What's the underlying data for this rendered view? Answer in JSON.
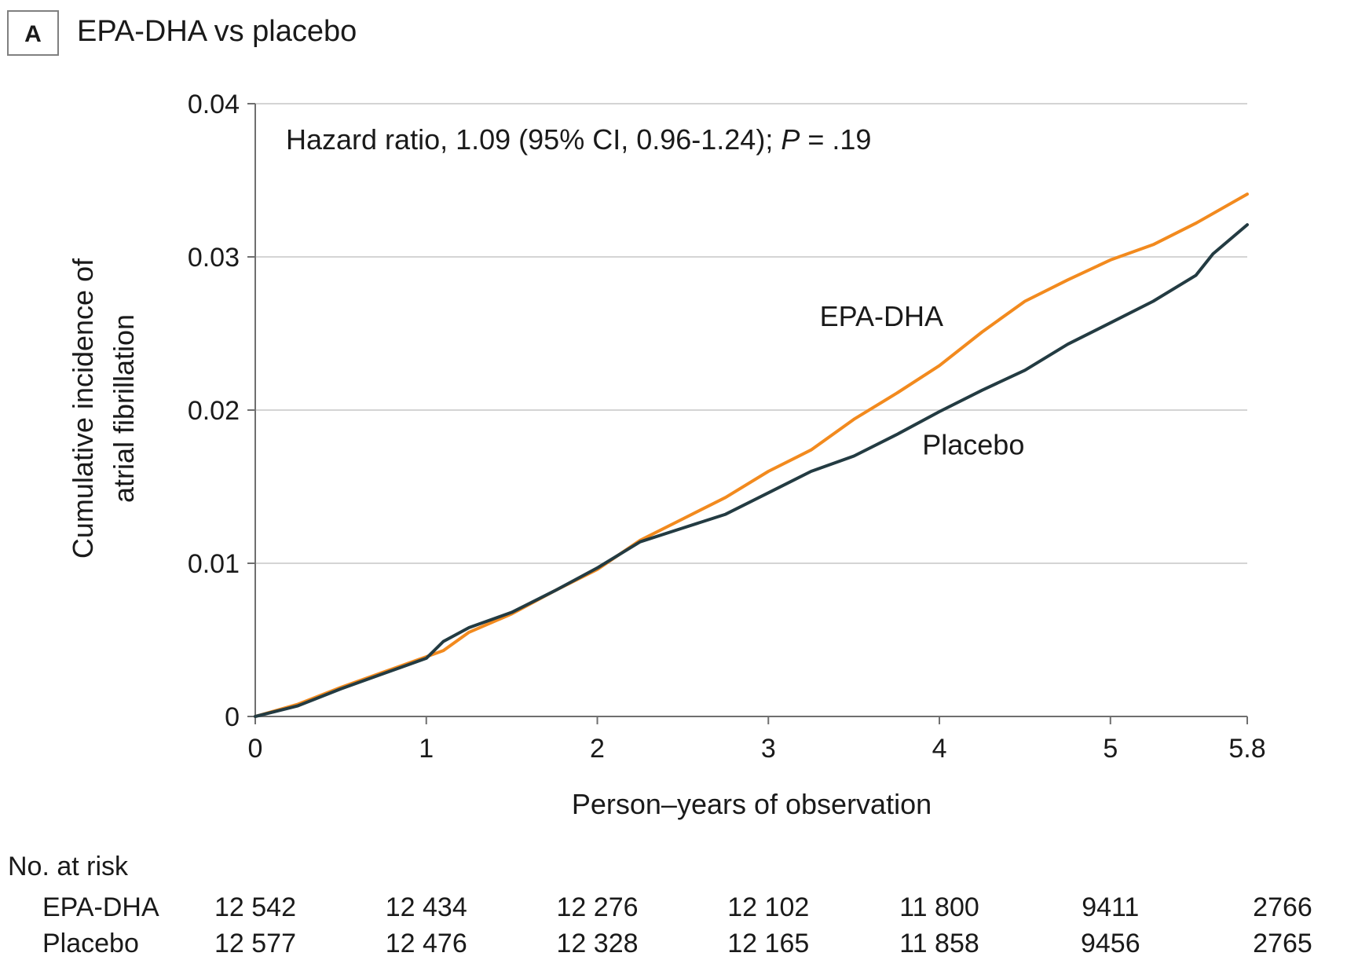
{
  "panel": {
    "letter": "A",
    "title": "EPA-DHA vs placebo"
  },
  "chart_data": {
    "type": "line",
    "title": "EPA-DHA vs placebo",
    "xlabel": "Person–years of observation",
    "ylabel_lines": [
      "Cumulative incidence of",
      "atrial fibrillation"
    ],
    "xlim": [
      0,
      5.8
    ],
    "ylim": [
      0,
      0.04
    ],
    "x_ticks": [
      0,
      1,
      2,
      3,
      4,
      5,
      5.8
    ],
    "x_tick_labels": [
      "0",
      "1",
      "2",
      "3",
      "4",
      "5",
      "5.8"
    ],
    "y_ticks": [
      0,
      0.01,
      0.02,
      0.03,
      0.04
    ],
    "y_tick_labels": [
      "0",
      "0.01",
      "0.02",
      "0.03",
      "0.04"
    ],
    "grid": "horizontal",
    "annotation": {
      "prefix": "Hazard ratio, 1.09 (95% CI, 0.96-1.24); ",
      "p_symbol": "P",
      "suffix": " = .19"
    },
    "series": [
      {
        "name": "EPA-DHA",
        "color": "#f28a1e",
        "label_x": 3.3,
        "label_y": 0.0255,
        "x": [
          0,
          0.25,
          0.5,
          0.75,
          1.0,
          1.1,
          1.25,
          1.5,
          1.75,
          2.0,
          2.25,
          2.5,
          2.75,
          3.0,
          3.25,
          3.5,
          3.75,
          4.0,
          4.25,
          4.5,
          4.75,
          5.0,
          5.25,
          5.5,
          5.8
        ],
        "y": [
          0,
          0.0008,
          0.0019,
          0.0029,
          0.0039,
          0.0043,
          0.0055,
          0.0067,
          0.0082,
          0.0096,
          0.0115,
          0.0129,
          0.0143,
          0.016,
          0.0174,
          0.0194,
          0.0211,
          0.0229,
          0.0251,
          0.0271,
          0.0285,
          0.0298,
          0.0308,
          0.0322,
          0.0341
        ]
      },
      {
        "name": "Placebo",
        "color": "#233b42",
        "label_x": 3.9,
        "label_y": 0.0171,
        "x": [
          0,
          0.25,
          0.5,
          0.75,
          1.0,
          1.1,
          1.25,
          1.5,
          1.75,
          2.0,
          2.25,
          2.5,
          2.75,
          3.0,
          3.25,
          3.5,
          3.75,
          4.0,
          4.25,
          4.5,
          4.75,
          5.0,
          5.25,
          5.5,
          5.6,
          5.8
        ],
        "y": [
          0,
          0.0007,
          0.0018,
          0.0028,
          0.0038,
          0.0049,
          0.0058,
          0.0068,
          0.0082,
          0.0097,
          0.0114,
          0.0123,
          0.0132,
          0.0146,
          0.016,
          0.017,
          0.0184,
          0.0199,
          0.0213,
          0.0226,
          0.0243,
          0.0257,
          0.0271,
          0.0288,
          0.0302,
          0.0321
        ]
      }
    ]
  },
  "risk_table": {
    "header": "No. at risk",
    "rows": [
      {
        "label": "EPA-DHA",
        "values": [
          "12 542",
          "12 434",
          "12 276",
          "12 102",
          "11 800",
          "9411",
          "2766"
        ]
      },
      {
        "label": "Placebo",
        "values": [
          "12 577",
          "12 476",
          "12 328",
          "12 165",
          "11 858",
          "9456",
          "2765"
        ]
      }
    ]
  }
}
